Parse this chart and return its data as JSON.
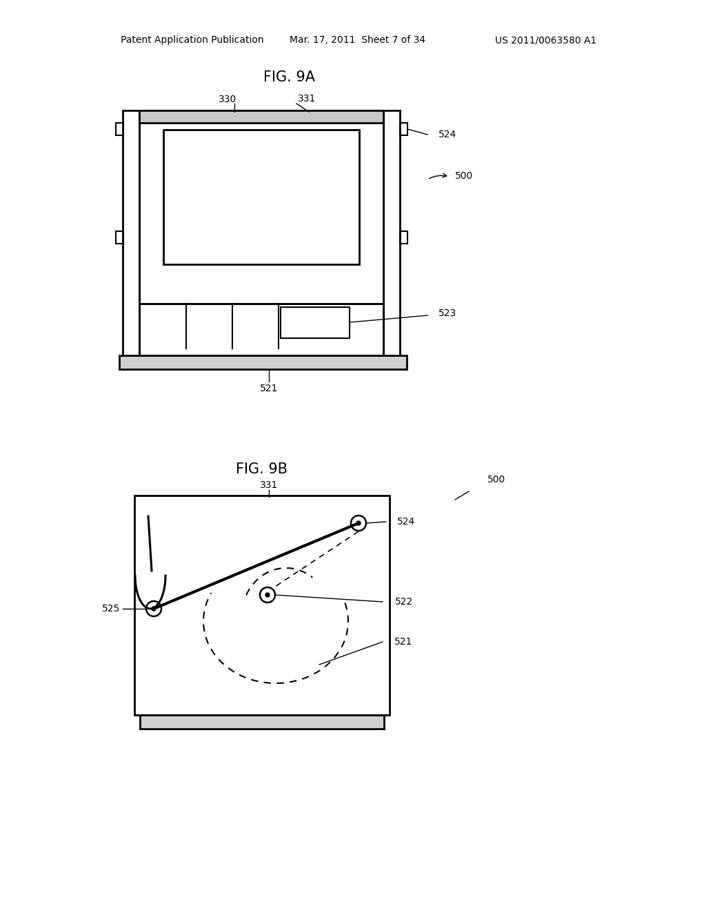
{
  "bg_color": "#ffffff",
  "header_left": "Patent Application Publication",
  "header_mid": "Mar. 17, 2011  Sheet 7 of 34",
  "header_right": "US 2011/0063580 A1",
  "fig9a_title": "FIG. 9A",
  "fig9b_title": "FIG. 9B",
  "label_330": "330",
  "label_331a": "331",
  "label_331b": "331",
  "label_521a": "521",
  "label_521b": "521",
  "label_522": "522",
  "label_523": "523",
  "label_524a": "524",
  "label_524b": "524",
  "label_525": "525",
  "label_500a": "500",
  "label_500b": "500"
}
